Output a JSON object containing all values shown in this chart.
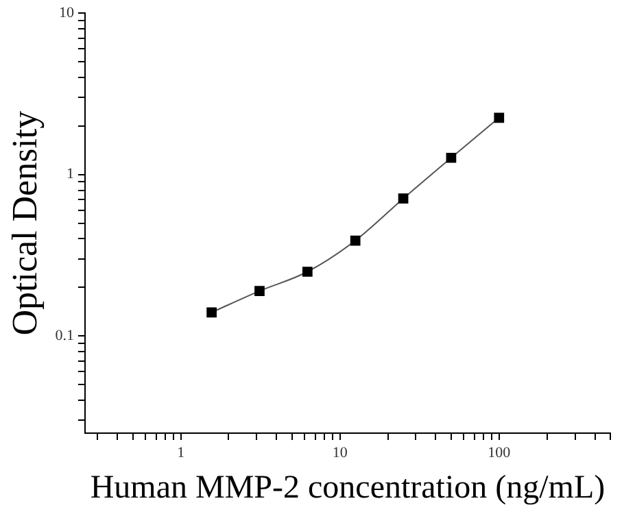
{
  "chart_data": {
    "type": "scatter",
    "xlabel": "Human MMP-2 concentration (ng/mL)",
    "ylabel": "Optical Density",
    "log": "xy",
    "grid": false,
    "legend": false,
    "marker": "square",
    "xlim": [
      0.25,
      500
    ],
    "ylim": [
      0.025,
      10
    ],
    "xticks": [
      {
        "value": 0.3,
        "label": null
      },
      {
        "value": 0.4,
        "label": null
      },
      {
        "value": 0.5,
        "label": null
      },
      {
        "value": 0.6,
        "label": null
      },
      {
        "value": 0.7,
        "label": null
      },
      {
        "value": 0.8,
        "label": null
      },
      {
        "value": 0.9,
        "label": null
      },
      1,
      {
        "value": 2,
        "label": null
      },
      {
        "value": 3,
        "label": null
      },
      {
        "value": 4,
        "label": null
      },
      {
        "value": 5,
        "label": null
      },
      {
        "value": 6,
        "label": null
      },
      {
        "value": 7,
        "label": null
      },
      {
        "value": 8,
        "label": null
      },
      {
        "value": 9,
        "label": null
      },
      10,
      {
        "value": 20,
        "label": null
      },
      {
        "value": 30,
        "label": null
      },
      {
        "value": 40,
        "label": null
      },
      {
        "value": 50,
        "label": null
      },
      {
        "value": 60,
        "label": null
      },
      {
        "value": 70,
        "label": null
      },
      {
        "value": 80,
        "label": null
      },
      {
        "value": 90,
        "label": null
      },
      100,
      {
        "value": 200,
        "label": null
      },
      {
        "value": 300,
        "label": null
      },
      {
        "value": 400,
        "label": null
      },
      {
        "value": 500,
        "label": null
      }
    ],
    "yticks": [
      {
        "value": 0.03,
        "label": null
      },
      {
        "value": 0.04,
        "label": null
      },
      {
        "value": 0.05,
        "label": null
      },
      {
        "value": 0.06,
        "label": null
      },
      {
        "value": 0.07,
        "label": null
      },
      {
        "value": 0.08,
        "label": null
      },
      {
        "value": 0.09,
        "label": null
      },
      0.1,
      {
        "value": 0.2,
        "label": null
      },
      {
        "value": 0.3,
        "label": null
      },
      {
        "value": 0.4,
        "label": null
      },
      {
        "value": 0.5,
        "label": null
      },
      {
        "value": 0.6,
        "label": null
      },
      {
        "value": 0.7,
        "label": null
      },
      {
        "value": 0.8,
        "label": null
      },
      {
        "value": 0.9,
        "label": null
      },
      1,
      {
        "value": 2,
        "label": null
      },
      {
        "value": 3,
        "label": null
      },
      {
        "value": 4,
        "label": null
      },
      {
        "value": 5,
        "label": null
      },
      {
        "value": 6,
        "label": null
      },
      {
        "value": 7,
        "label": null
      },
      {
        "value": 8,
        "label": null
      },
      {
        "value": 9,
        "label": null
      },
      10
    ],
    "series": [
      {
        "type": "line",
        "color": "#555555",
        "marker": "none",
        "x": [
          1.5625,
          3.125,
          6.25,
          12.5,
          25,
          50,
          100
        ],
        "values": [
          0.14,
          0.19,
          0.25,
          0.39,
          0.71,
          1.27,
          2.25
        ]
      },
      {
        "color": "#000000",
        "x": [
          1.5625,
          3.125,
          6.25,
          12.5,
          25,
          50,
          100
        ],
        "values": [
          0.14,
          0.19,
          0.25,
          0.39,
          0.71,
          1.27,
          2.25
        ]
      }
    ]
  }
}
